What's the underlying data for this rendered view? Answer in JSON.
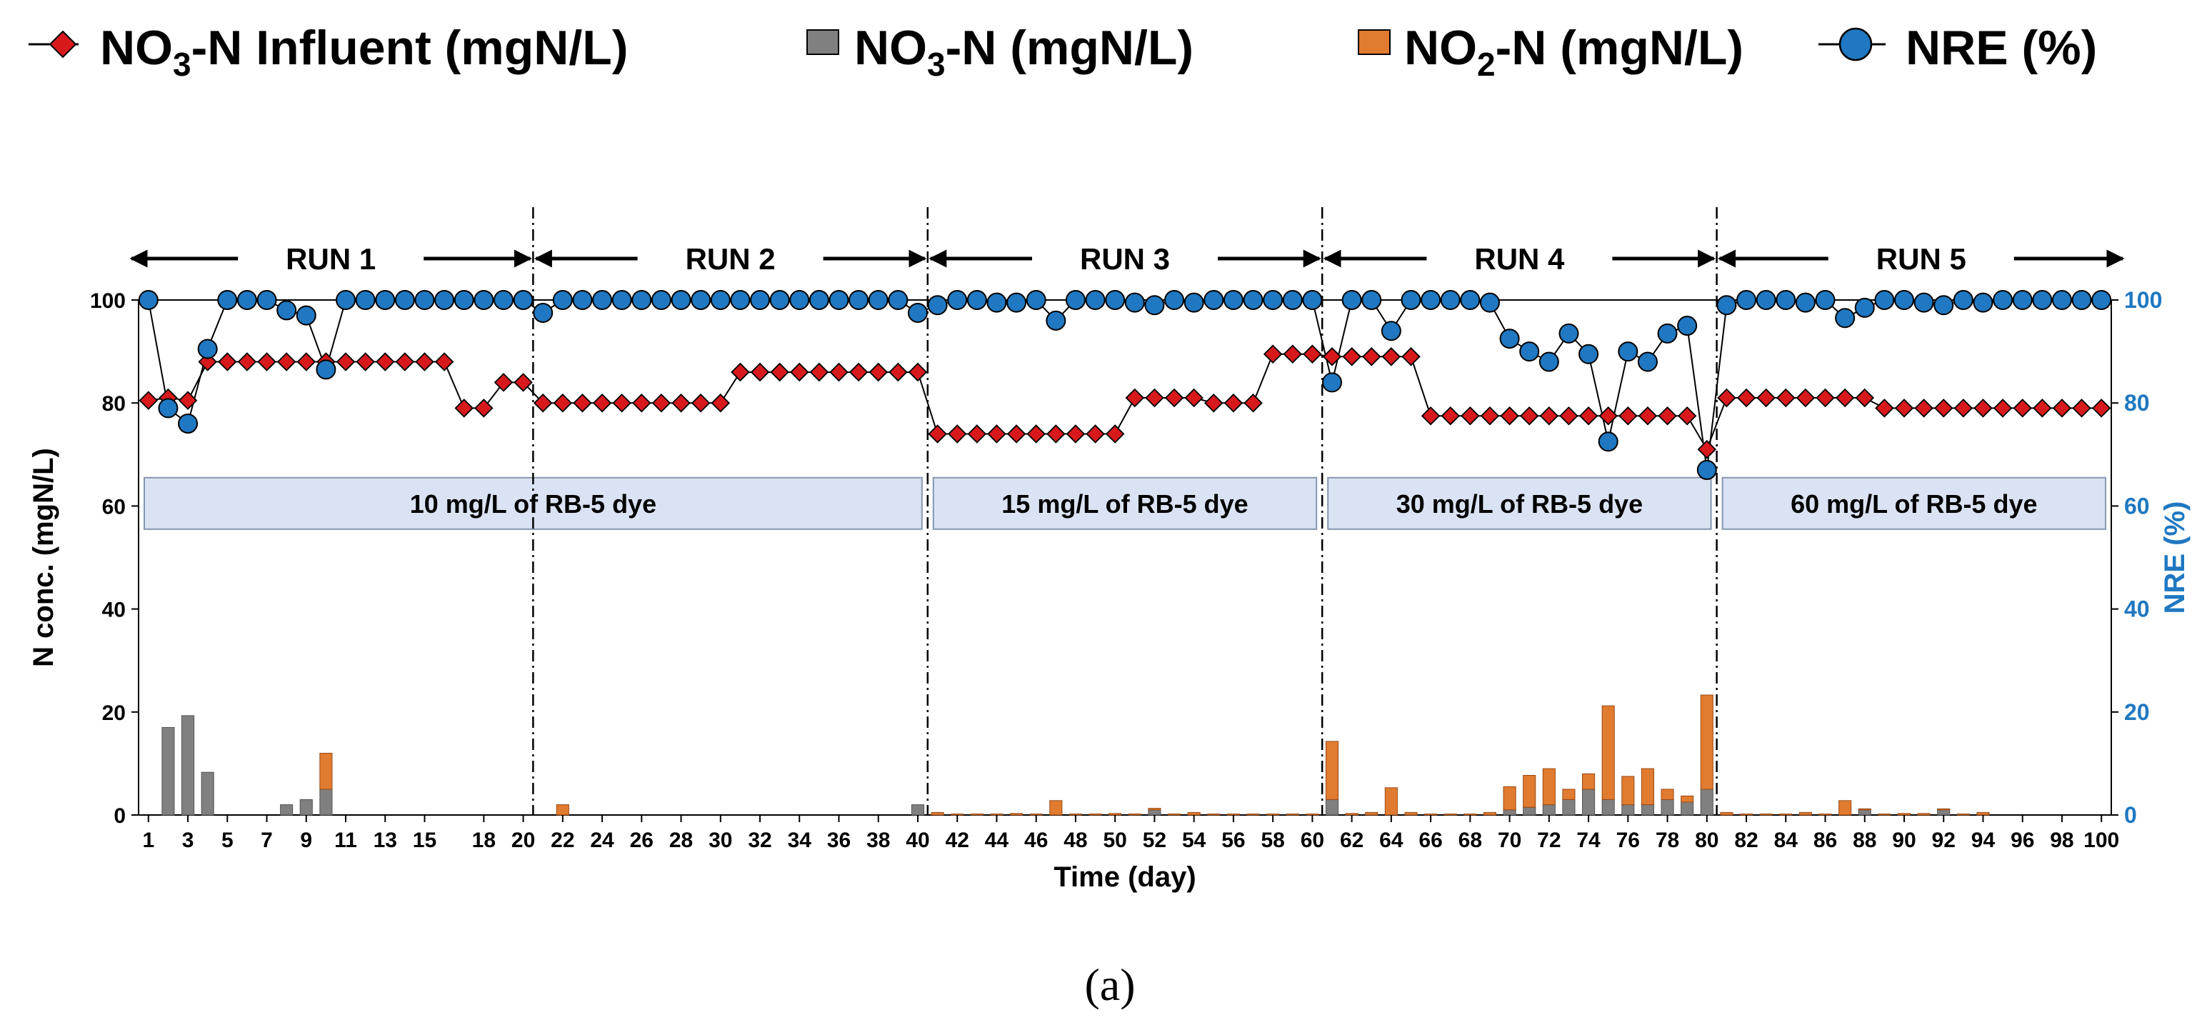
{
  "chart_data": {
    "type": "bar+line",
    "caption": "(a)",
    "xlabel": "Time (day)",
    "ylabel_left": "N conc. (mgN/L)",
    "ylabel_right": "NRE (%)",
    "ylim_left": [
      0,
      100
    ],
    "ylim_right": [
      0,
      100
    ],
    "yticks_left": [
      0,
      20,
      40,
      60,
      80,
      100
    ],
    "yticks_right": [
      0,
      20,
      40,
      60,
      80,
      100
    ],
    "xlim": [
      1,
      100
    ],
    "xticks": [
      1,
      3,
      5,
      7,
      9,
      11,
      13,
      15,
      18,
      20,
      22,
      24,
      26,
      28,
      30,
      32,
      34,
      36,
      38,
      40,
      42,
      44,
      46,
      48,
      50,
      52,
      54,
      56,
      58,
      60,
      62,
      64,
      66,
      68,
      70,
      72,
      74,
      76,
      78,
      80,
      82,
      84,
      86,
      88,
      90,
      92,
      94,
      96,
      98,
      100
    ],
    "legend": {
      "influent": {
        "pre": "NO",
        "sub": "3",
        "post": "-N Influent (mgN/L)"
      },
      "no3": {
        "pre": "NO",
        "sub": "3",
        "post": "-N (mgN/L)"
      },
      "no2": {
        "pre": "NO",
        "sub": "2",
        "post": "-N (mgN/L)"
      },
      "nre": {
        "pre": "NRE (%)",
        "sub": "",
        "post": ""
      }
    },
    "colors": {
      "influent": "#d7191c",
      "no3": "#808080",
      "no2": "#e07b30",
      "nre": "#1f78c1",
      "band_fill": "#dae3f3",
      "band_stroke": "#8497b0",
      "right_axis_text": "#1f78c1"
    },
    "runs": [
      {
        "label": "RUN 1",
        "start": 0,
        "end": 20
      },
      {
        "label": "RUN 2",
        "start": 20,
        "end": 40
      },
      {
        "label": "RUN 3",
        "start": 40,
        "end": 60
      },
      {
        "label": "RUN 4",
        "start": 60,
        "end": 80
      },
      {
        "label": "RUN 5",
        "start": 80,
        "end": 100
      }
    ],
    "dye_bands": [
      {
        "label": "10 mg/L of RB-5 dye",
        "start": 0,
        "end": 40
      },
      {
        "label": "15 mg/L of RB-5 dye",
        "start": 40,
        "end": 60
      },
      {
        "label": "30 mg/L of RB-5 dye",
        "start": 60,
        "end": 80
      },
      {
        "label": "60 mg/L of RB-5 dye",
        "start": 80,
        "end": 100
      }
    ],
    "phase_dividers": [
      20,
      40,
      60,
      80
    ],
    "series": [
      {
        "name": "NO3-N Influent (mgN/L)",
        "key": "influent",
        "kind": "line-diamond",
        "values": [
          80.5,
          81,
          80.5,
          88,
          88,
          88,
          88,
          88,
          88,
          88,
          88,
          88,
          88,
          88,
          88,
          88,
          79,
          79,
          84,
          84,
          80,
          80,
          80,
          80,
          80,
          80,
          80,
          80,
          80,
          80,
          86,
          86,
          86,
          86,
          86,
          86,
          86,
          86,
          86,
          86,
          74,
          74,
          74,
          74,
          74,
          74,
          74,
          74,
          74,
          74,
          81,
          81,
          81,
          81,
          80,
          80,
          80,
          89.5,
          89.5,
          89.5,
          89,
          89,
          89,
          89,
          89,
          77.5,
          77.5,
          77.5,
          77.5,
          77.5,
          77.5,
          77.5,
          77.5,
          77.5,
          77.5,
          77.5,
          77.5,
          77.5,
          77.5,
          71,
          81,
          81,
          81,
          81,
          81,
          81,
          81,
          81,
          79,
          79,
          79,
          79,
          79,
          79,
          79,
          79,
          79,
          79,
          79,
          79
        ]
      },
      {
        "name": "NO3-N (mgN/L)",
        "key": "no3",
        "kind": "bar",
        "values": [
          0,
          17,
          19.3,
          8.3,
          0,
          0,
          0,
          2,
          3,
          5,
          0,
          0,
          0,
          0,
          0,
          0,
          0,
          0,
          0,
          0,
          0,
          0,
          0,
          0,
          0,
          0,
          0,
          0,
          0,
          0,
          0,
          0,
          0,
          0,
          0,
          0,
          0,
          0,
          0,
          2,
          0,
          0,
          0,
          0,
          0,
          0,
          0,
          0,
          0,
          0,
          0,
          1,
          0,
          0,
          0,
          0,
          0,
          0,
          0,
          0,
          3,
          0,
          0,
          0,
          0,
          0,
          0,
          0,
          0,
          1,
          1.5,
          2,
          3,
          5,
          3,
          2,
          2,
          3,
          2.5,
          5,
          0,
          0,
          0,
          0,
          0,
          0,
          0,
          1,
          0,
          0,
          0,
          1,
          0,
          0,
          0,
          0,
          0,
          0,
          0,
          0
        ]
      },
      {
        "name": "NO2-N (mgN/L)",
        "key": "no2",
        "kind": "bar",
        "values": [
          0,
          0,
          0,
          0,
          0,
          0,
          0,
          0,
          0,
          7,
          0,
          0,
          0,
          0,
          0,
          0,
          0,
          0,
          0,
          0,
          0,
          2,
          0,
          0,
          0,
          0,
          0,
          0,
          0,
          0,
          0,
          0,
          0,
          0,
          0,
          0,
          0,
          0,
          0,
          0,
          0.5,
          0.2,
          0.2,
          0.2,
          0.3,
          0.2,
          2.8,
          0.2,
          0.2,
          0.3,
          0.2,
          0.3,
          0.2,
          0.5,
          0.2,
          0.2,
          0.2,
          0.2,
          0.2,
          0.2,
          11.3,
          0.3,
          0.5,
          5.3,
          0.5,
          0.2,
          0.2,
          0.2,
          0.5,
          4.5,
          6.2,
          7,
          2,
          3,
          18.2,
          5.5,
          7,
          2,
          1.2,
          18.3,
          0.5,
          0.2,
          0.2,
          0.2,
          0.5,
          0.2,
          2.8,
          0.2,
          0.2,
          0.3,
          0.3,
          0.2,
          0.2,
          0.5,
          0,
          0,
          0,
          0,
          0,
          0
        ]
      },
      {
        "name": "NRE (%)",
        "key": "nre",
        "kind": "line-circle",
        "axis": "right",
        "values": [
          100,
          79,
          76,
          90.5,
          100,
          100,
          100,
          98,
          97,
          86.5,
          100,
          100,
          100,
          100,
          100,
          100,
          100,
          100,
          100,
          100,
          97.5,
          100,
          100,
          100,
          100,
          100,
          100,
          100,
          100,
          100,
          100,
          100,
          100,
          100,
          100,
          100,
          100,
          100,
          100,
          97.5,
          99,
          100,
          100,
          99.5,
          99.5,
          100,
          96,
          100,
          100,
          100,
          99.5,
          99,
          100,
          99.5,
          100,
          100,
          100,
          100,
          100,
          100,
          84,
          100,
          100,
          94,
          100,
          100,
          100,
          100,
          99.5,
          92.5,
          90,
          88,
          93.5,
          89.5,
          72.5,
          90,
          88,
          93.5,
          95,
          67,
          99,
          100,
          100,
          100,
          99.5,
          100,
          96.5,
          98.5,
          100,
          100,
          99.5,
          99,
          100,
          99.5,
          100,
          100,
          100,
          100,
          100,
          100
        ]
      }
    ]
  }
}
